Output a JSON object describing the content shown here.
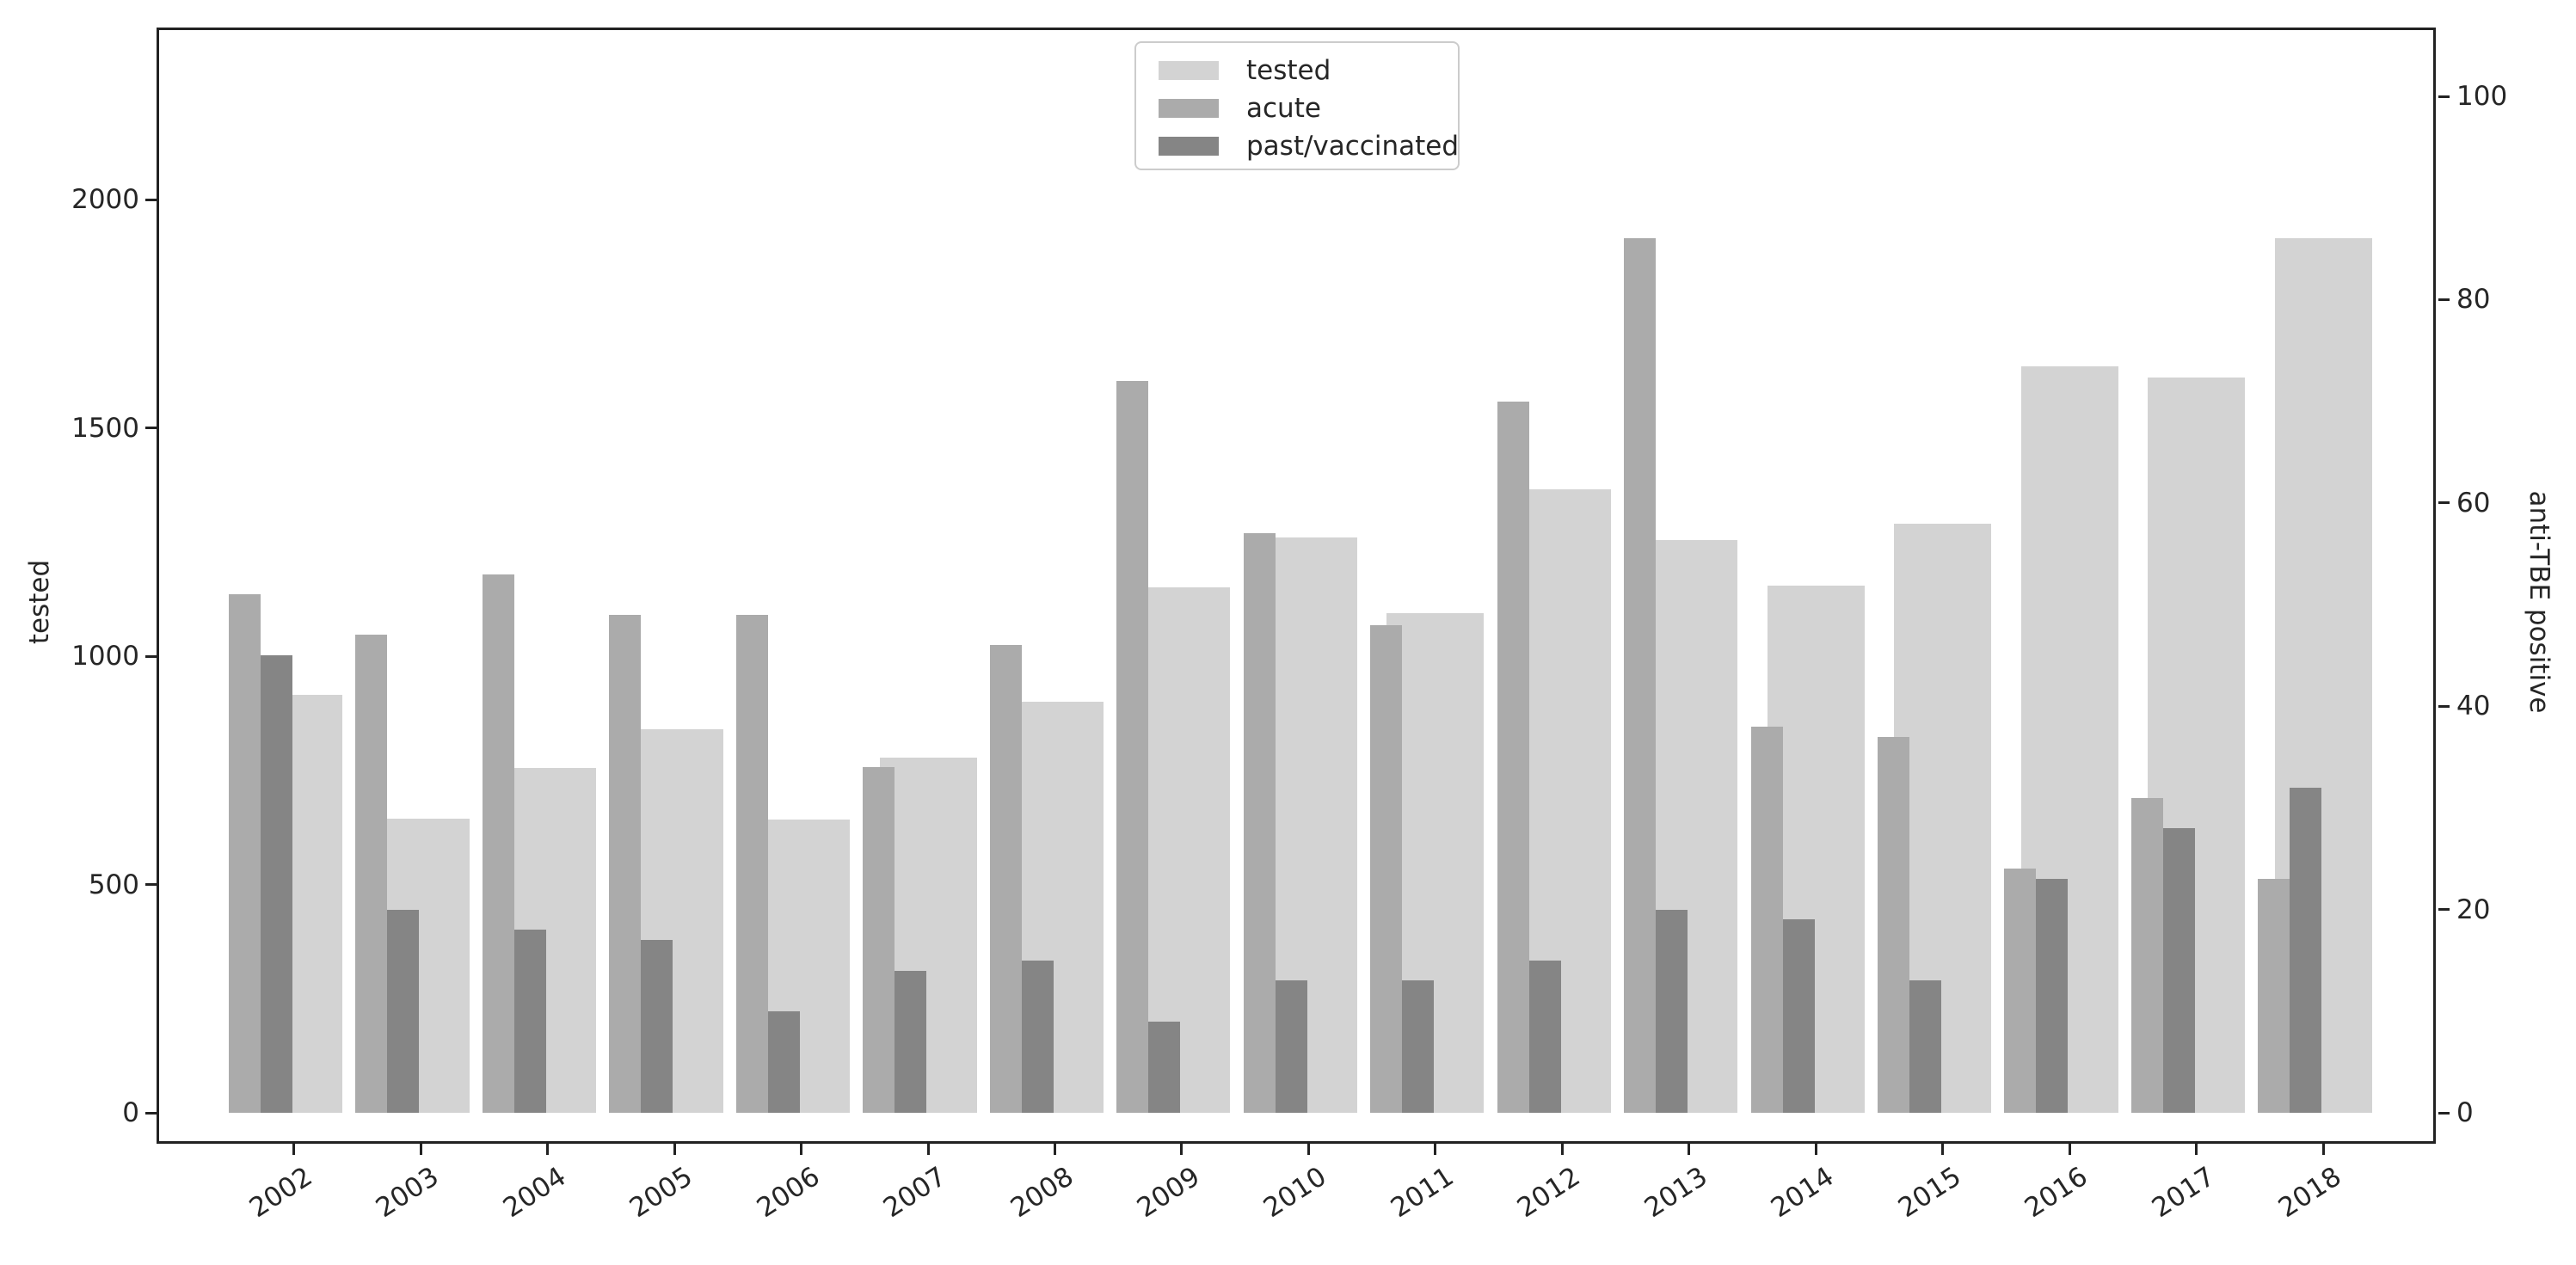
{
  "chart_data": {
    "type": "bar",
    "title": "",
    "categories": [
      "2002",
      "2003",
      "2004",
      "2005",
      "2006",
      "2007",
      "2008",
      "2009",
      "2010",
      "2011",
      "2012",
      "2013",
      "2014",
      "2015",
      "2016",
      "2017",
      "2018"
    ],
    "series": [
      {
        "name": "tested",
        "axis": "left",
        "color": "#d3d3d3",
        "values": [
          915,
          645,
          755,
          840,
          643,
          777,
          900,
          1150,
          1260,
          1095,
          1365,
          1255,
          1155,
          1290,
          1635,
          1610,
          1915
        ]
      },
      {
        "name": "acute",
        "axis": "right",
        "color": "#ababab",
        "values": [
          51,
          47,
          53,
          49,
          49,
          34,
          46,
          72,
          57,
          48,
          70,
          86,
          38,
          37,
          24,
          31,
          23
        ]
      },
      {
        "name": "past/vaccinated",
        "axis": "right",
        "color": "#858585",
        "values": [
          45,
          20,
          18,
          17,
          10,
          14,
          15,
          9,
          13,
          13,
          15,
          20,
          19,
          13,
          23,
          28,
          32
        ]
      }
    ],
    "ylabel_left": "tested",
    "ylabel_right": "anti-TBE positive",
    "yticks_left": [
      "0",
      "500",
      "1000",
      "1500",
      "2000"
    ],
    "yticks_left_values": [
      0,
      500,
      1000,
      1500,
      2000
    ],
    "yticks_right": [
      "0",
      "20",
      "40",
      "60",
      "80",
      "100"
    ],
    "yticks_right_values": [
      0,
      20,
      40,
      60,
      80,
      100
    ],
    "ylim_left": [
      0,
      2375
    ],
    "ylim_right": [
      0,
      106
    ],
    "grid": "off",
    "legend_position": "upper center-left inside plot",
    "legend": [
      "tested",
      "acute",
      "past/vaccinated"
    ]
  }
}
